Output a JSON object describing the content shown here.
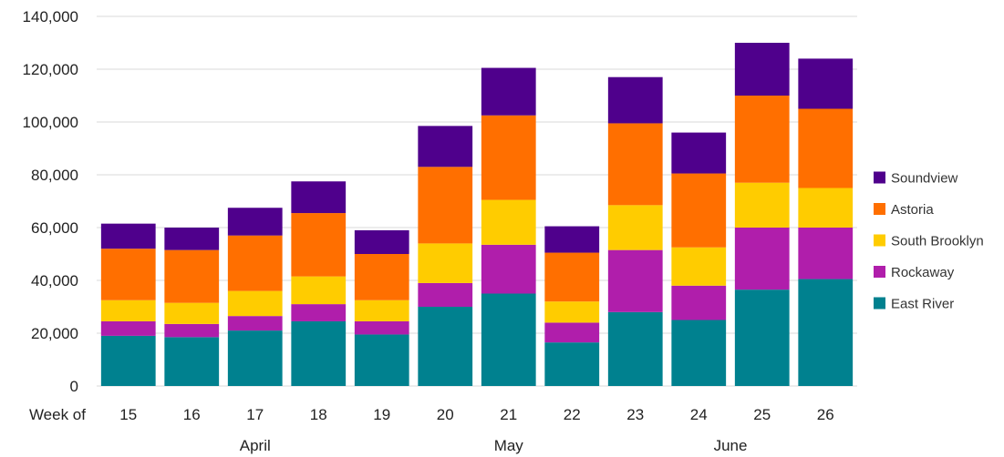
{
  "chart_data": {
    "type": "bar",
    "stacked": true,
    "x_prefix_label": "Week of",
    "categories": [
      "15",
      "16",
      "17",
      "18",
      "19",
      "20",
      "21",
      "22",
      "23",
      "24",
      "25",
      "26"
    ],
    "month_labels": [
      {
        "label": "April",
        "from": "15",
        "to": "19"
      },
      {
        "label": "May",
        "from": "20",
        "to": "22"
      },
      {
        "label": "June",
        "from": "23",
        "to": "26"
      }
    ],
    "ylim": [
      0,
      140000
    ],
    "yticks": [
      "0",
      "20,000",
      "40,000",
      "60,000",
      "80,000",
      "100,000",
      "120,000",
      "140,000"
    ],
    "ytick_values": [
      0,
      20000,
      40000,
      60000,
      80000,
      100000,
      120000,
      140000
    ],
    "grid": true,
    "legend_position": "right",
    "series": [
      {
        "name": "East River",
        "color": "#00818F",
        "values": [
          19000,
          18500,
          21000,
          24500,
          19500,
          30000,
          35000,
          16500,
          28000,
          25000,
          36500,
          40500
        ]
      },
      {
        "name": "Rockaway",
        "color": "#B01EAB",
        "values": [
          5500,
          5000,
          5500,
          6500,
          5000,
          9000,
          18500,
          7500,
          23500,
          13000,
          23500,
          19500
        ]
      },
      {
        "name": "South Brooklyn",
        "color": "#FFCC00",
        "values": [
          8000,
          8000,
          9500,
          10500,
          8000,
          15000,
          17000,
          8000,
          17000,
          14500,
          17000,
          15000
        ]
      },
      {
        "name": "Astoria",
        "color": "#FF6F00",
        "values": [
          19500,
          20000,
          21000,
          24000,
          17500,
          29000,
          32000,
          18500,
          31000,
          28000,
          33000,
          30000
        ]
      },
      {
        "name": "Soundview",
        "color": "#4F008C",
        "values": [
          9500,
          8500,
          10500,
          12000,
          9000,
          15500,
          18000,
          10000,
          17500,
          15500,
          20000,
          19000
        ]
      }
    ],
    "legend_order": [
      "Soundview",
      "Astoria",
      "South Brooklyn",
      "Rockaway",
      "East River"
    ]
  }
}
